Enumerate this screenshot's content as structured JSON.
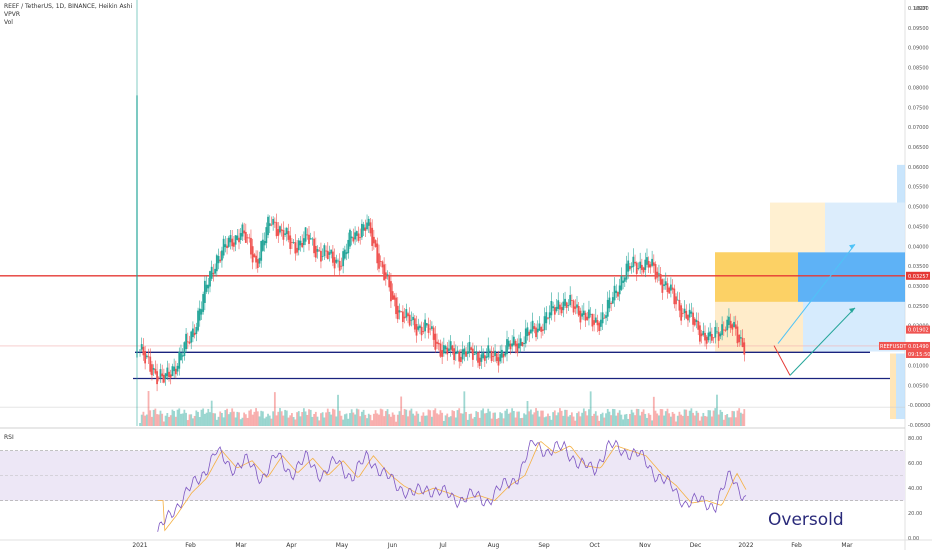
{
  "header": {
    "symbol_line": "REEF / TetherUS, 1D, BINANCE, Heikin Ashi",
    "indicator_1": "VPVR",
    "indicator_2": "Vol"
  },
  "rsi_panel": {
    "label": "RSI"
  },
  "annotation": {
    "text": "Oversold"
  },
  "colors": {
    "up": "#26a69a",
    "down": "#ef5350",
    "red_level": "#e53935",
    "blue_level": "#1a237e",
    "rsi_line": "#7e57c2",
    "rsi_ma": "#f5b042",
    "rsi_band": "#ede7f6",
    "arrow_green": "#26a69a",
    "arrow_blue": "#4fc3f7"
  },
  "chart_data": [
    {
      "type": "candlestick",
      "price_axis_currency": "USDT",
      "price_ticks": [
        "0.10000",
        "0.09500",
        "0.09000",
        "0.08500",
        "0.08000",
        "0.07500",
        "0.07000",
        "0.06500",
        "0.06000",
        "0.05500",
        "0.05000",
        "0.04500",
        "0.04000",
        "0.03500",
        "0.03000",
        "0.02500",
        "0.02000",
        "0.01500",
        "0.01000",
        "0.00500",
        "-0.00000",
        "-0.00500"
      ],
      "price_tick_values": [
        0.1,
        0.095,
        0.09,
        0.085,
        0.08,
        0.075,
        0.07,
        0.065,
        0.06,
        0.055,
        0.05,
        0.045,
        0.04,
        0.035,
        0.03,
        0.025,
        0.02,
        0.015,
        0.01,
        0.005,
        0,
        -0.005
      ],
      "ylim": [
        -0.005,
        0.1
      ],
      "months": [
        "2021",
        "Feb",
        "Mar",
        "Apr",
        "May",
        "Jun",
        "Jul",
        "Aug",
        "Sep",
        "Oct",
        "Nov",
        "Dec",
        "2022",
        "Feb",
        "Mar"
      ],
      "month_index": [
        0,
        1,
        2,
        3,
        4,
        5,
        6,
        7,
        8,
        9,
        10,
        11,
        12,
        13,
        14
      ],
      "price_path_months": [
        0,
        0.1,
        0.5,
        1,
        1.2,
        1.5,
        2,
        2.3,
        2.6,
        3,
        3.3,
        3.6,
        4,
        4.2,
        4.5,
        4.7,
        5,
        5.3,
        5.7,
        6,
        6.5,
        7,
        7.5,
        8,
        8.3,
        8.7,
        9,
        9.3,
        9.6,
        10,
        10.3,
        10.6,
        11,
        11.3,
        11.6,
        12
      ],
      "price_path_close": [
        0.014,
        0.011,
        0.006,
        0.017,
        0.025,
        0.037,
        0.044,
        0.036,
        0.047,
        0.04,
        0.042,
        0.038,
        0.036,
        0.043,
        0.045,
        0.038,
        0.026,
        0.021,
        0.019,
        0.0135,
        0.013,
        0.012,
        0.016,
        0.021,
        0.026,
        0.024,
        0.02,
        0.025,
        0.034,
        0.036,
        0.032,
        0.026,
        0.02,
        0.016,
        0.021,
        0.0149
      ],
      "levels": [
        {
          "price": 0.03257,
          "label": "0.03257",
          "color": "red"
        },
        {
          "price": 0.0149,
          "label": "0.01490",
          "color": "down"
        },
        {
          "price": 0.01902,
          "label": "0.01902",
          "color": "down"
        }
      ],
      "symbol_tag": "REEFUSDT",
      "countdown": "09:15:50",
      "volume_spike_month": 0
    },
    {
      "type": "line",
      "name": "RSI",
      "rsi_ticks": [
        "80.00",
        "60.00",
        "40.00",
        "20.00",
        "0.00"
      ],
      "rsi_tick_values": [
        80,
        60,
        40,
        20,
        0
      ],
      "band": [
        30,
        70
      ],
      "ylim": [
        0,
        85
      ],
      "x_months": [
        0.35,
        0.6,
        0.9,
        1.2,
        1.5,
        1.8,
        2.1,
        2.4,
        2.7,
        3.0,
        3.3,
        3.6,
        3.9,
        4.2,
        4.5,
        4.8,
        5.1,
        5.4,
        5.7,
        6.0,
        6.3,
        6.6,
        6.9,
        7.2,
        7.5,
        7.8,
        8.1,
        8.4,
        8.7,
        9.0,
        9.3,
        9.6,
        9.9,
        10.2,
        10.5,
        10.8,
        11.1,
        11.4,
        11.7,
        12.0
      ],
      "values": [
        5,
        18,
        36,
        48,
        70,
        56,
        62,
        48,
        66,
        52,
        64,
        50,
        62,
        48,
        66,
        52,
        42,
        35,
        40,
        36,
        31,
        34,
        30,
        42,
        50,
        78,
        68,
        74,
        58,
        56,
        74,
        70,
        66,
        52,
        42,
        28,
        30,
        26,
        52,
        30
      ]
    }
  ]
}
